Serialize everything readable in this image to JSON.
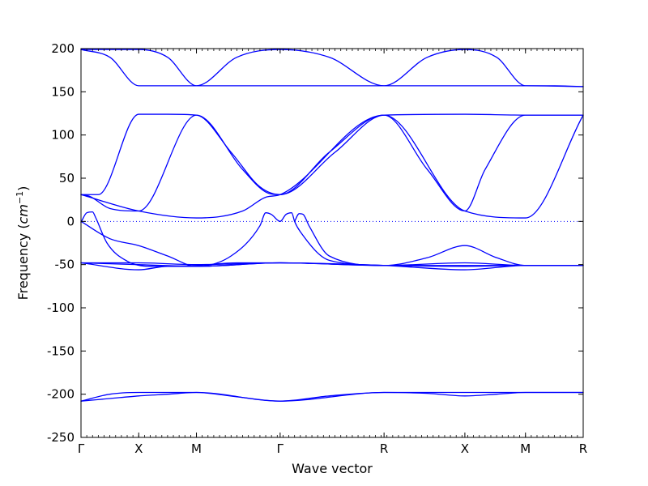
{
  "chart_data": {
    "type": "line",
    "title": "",
    "xlabel": "Wave vector",
    "ylabel_prefix": "Frequency (",
    "ylabel_unit_base": "cm",
    "ylabel_unit_exp": "−1",
    "ylabel_suffix": ")",
    "ylim": [
      -250,
      200
    ],
    "yticks": [
      -250,
      -200,
      -150,
      -100,
      -50,
      0,
      50,
      100,
      150,
      200
    ],
    "xlim": [
      0,
      8.7
    ],
    "xticks": [
      {
        "pos": 0,
        "label": "Γ"
      },
      {
        "pos": 1.0,
        "label": "X"
      },
      {
        "pos": 2.0,
        "label": "M"
      },
      {
        "pos": 3.45,
        "label": "Γ"
      },
      {
        "pos": 5.25,
        "label": "R"
      },
      {
        "pos": 6.65,
        "label": "X"
      },
      {
        "pos": 7.7,
        "label": "M"
      },
      {
        "pos": 8.7,
        "label": "R"
      }
    ],
    "zero_line": {
      "y": 0,
      "style": "dotted"
    },
    "line_color": "#0000ff",
    "series": [
      {
        "x": [
          0,
          0.5,
          1.0,
          1.5,
          2.0,
          2.7,
          3.45,
          4.3,
          5.25,
          6.0,
          6.65,
          7.2,
          7.7,
          8.2,
          8.7
        ],
        "y": [
          199,
          190,
          157,
          157,
          157,
          190,
          199,
          190,
          157,
          190,
          199,
          190,
          157,
          157,
          156
        ]
      },
      {
        "x": [
          0,
          1.0,
          1.5,
          2.0,
          3.45,
          5.25,
          6.65,
          7.7,
          8.7
        ],
        "y": [
          199,
          199,
          190,
          157,
          157,
          157,
          157,
          157,
          156
        ]
      },
      {
        "x": [
          0,
          0.3,
          1.0,
          1.5,
          2.0,
          2.6,
          3.1,
          3.45,
          4.4,
          5.25,
          6.65,
          7.7,
          8.1,
          8.7
        ],
        "y": [
          31,
          31,
          124,
          124,
          123,
          80,
          40,
          31,
          80,
          123,
          124,
          123,
          123,
          123
        ]
      },
      {
        "x": [
          0,
          0.15,
          0.5,
          1.0,
          2.0,
          2.8,
          3.2,
          3.45,
          4.3,
          5.25,
          6.0,
          6.65,
          7.0,
          7.7,
          8.7
        ],
        "y": [
          31,
          29,
          15,
          12,
          123,
          60,
          34,
          31,
          80,
          123,
          60,
          12,
          60,
          123,
          123
        ]
      },
      {
        "x": [
          0,
          1.0,
          2.0,
          2.8,
          3.2,
          3.45,
          5.25,
          6.65,
          7.7,
          8.7
        ],
        "y": [
          31,
          12,
          4,
          12,
          28,
          31,
          123,
          12,
          4,
          123
        ]
      },
      {
        "x": [
          0,
          0.1,
          0.2,
          0.25,
          0.45,
          0.8,
          1.2,
          2.0,
          2.7,
          3.45,
          5.25,
          6.65,
          8.7
        ],
        "y": [
          -1,
          10,
          11,
          5,
          -25,
          -46,
          -52,
          -51,
          -48,
          -48,
          -51,
          -51,
          -51
        ]
      },
      {
        "x": [
          0,
          0.5,
          1.0,
          1.5,
          2.0,
          2.6,
          3.1,
          3.2,
          3.3,
          3.45,
          3.55,
          3.65,
          3.7,
          3.8,
          4.3,
          5.25
        ],
        "y": [
          0,
          -20,
          -28,
          -40,
          -52,
          -40,
          -5,
          10,
          8,
          0,
          8,
          10,
          0,
          -12,
          -45,
          -51
        ]
      },
      {
        "x": [
          3.7,
          3.78,
          3.85,
          3.95,
          4.3,
          5.25,
          6.0,
          6.65,
          7.2,
          7.7,
          8.7
        ],
        "y": [
          0,
          9,
          8,
          -5,
          -40,
          -51,
          -42,
          -28,
          -42,
          -51,
          -51
        ]
      },
      {
        "x": [
          0,
          1.0,
          1.5,
          2.0,
          3.45,
          5.25,
          6.65,
          7.7,
          8.7
        ],
        "y": [
          -48,
          -56,
          -52,
          -52,
          -48,
          -51,
          -56,
          -51,
          -51
        ]
      },
      {
        "x": [
          0,
          1.0,
          2.0,
          3.45,
          5.25,
          6.65,
          7.7,
          8.7
        ],
        "y": [
          -48,
          -50,
          -52,
          -48,
          -51,
          -52,
          -51,
          -51
        ]
      },
      {
        "x": [
          0,
          1.0,
          2.0,
          3.45,
          5.25,
          6.65,
          7.7,
          8.7
        ],
        "y": [
          -48,
          -48,
          -50,
          -48,
          -51,
          -48,
          -51,
          -51
        ]
      },
      {
        "x": [
          0,
          0.5,
          1.0,
          1.5,
          2.0,
          2.7,
          3.45,
          4.3,
          5.25,
          6.0,
          6.65,
          7.2,
          7.7,
          8.2,
          8.7
        ],
        "y": [
          -208,
          -205,
          -202,
          -200,
          -198,
          -203,
          -208,
          -202,
          -198,
          -199,
          -202,
          -200,
          -198,
          -198,
          -198
        ]
      },
      {
        "x": [
          0,
          0.5,
          1.0,
          2.0,
          3.45,
          5.25,
          6.65,
          7.7,
          8.7
        ],
        "y": [
          -208,
          -200,
          -198,
          -198,
          -208,
          -198,
          -198,
          -198,
          -198
        ]
      }
    ]
  }
}
